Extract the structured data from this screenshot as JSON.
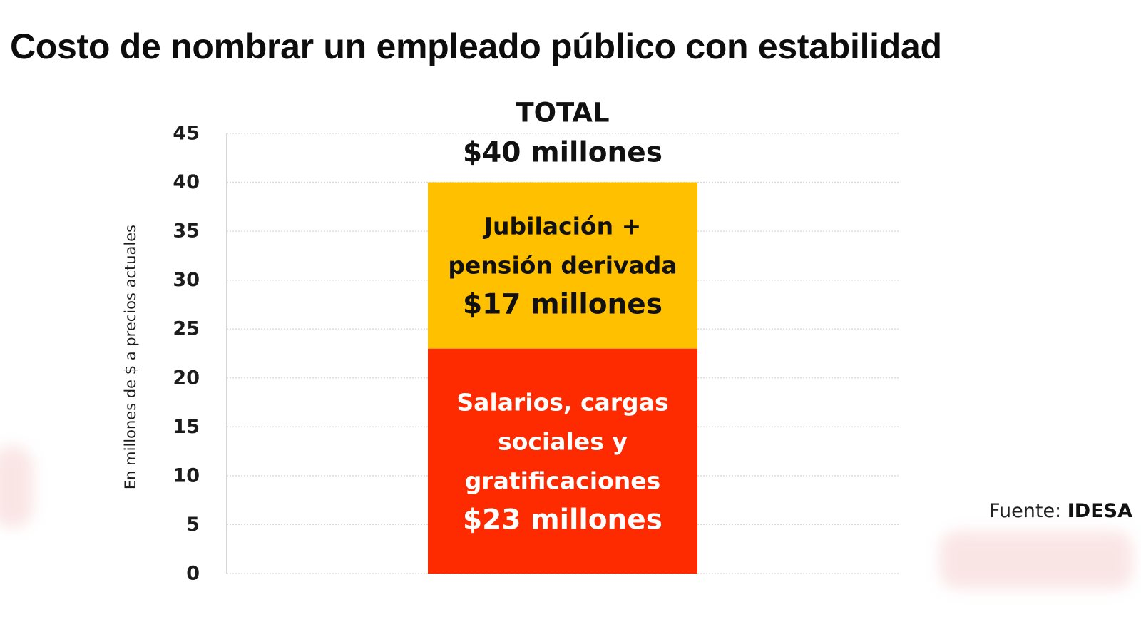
{
  "chart_data": {
    "type": "bar",
    "stacked": true,
    "title": "Costo de nombrar un empleado público con estabilidad",
    "ylabel": "En millones de $ a precios actuales",
    "xlabel": "",
    "ylim": [
      0,
      45
    ],
    "yticks": [
      0,
      5,
      10,
      15,
      20,
      25,
      30,
      35,
      40,
      45
    ],
    "grid": true,
    "categories": [
      ""
    ],
    "series": [
      {
        "id": "salarios",
        "values": [
          23
        ],
        "color": "#fe2a00",
        "label_lines": [
          "Salarios, cargas",
          "sociales y",
          "gratificaciones"
        ],
        "value_label": "$23 millones",
        "text_color": "#ffffff"
      },
      {
        "id": "jubilacion",
        "values": [
          17
        ],
        "color": "#ffc000",
        "label_lines": [
          "Jubilación +",
          "pensión derivada"
        ],
        "value_label": "$17 millones",
        "text_color": "#111111"
      }
    ],
    "total_label": {
      "line1": "TOTAL",
      "line2": "$40 millones"
    }
  },
  "source": {
    "prefix": "Fuente:",
    "name": "IDESA"
  },
  "colors": {
    "gridline": "#d9d9d9",
    "axis": "#bfbfbf",
    "text": "#1c1c1c"
  }
}
